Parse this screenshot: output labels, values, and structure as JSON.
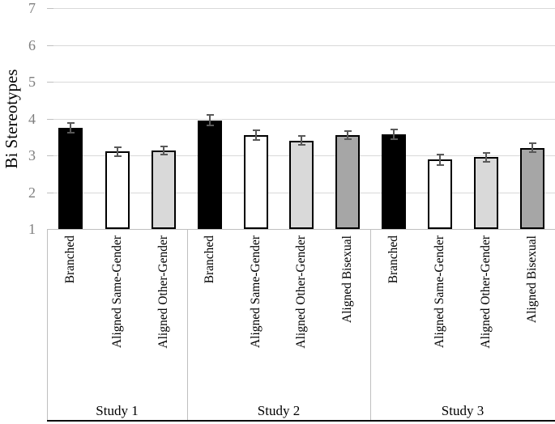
{
  "chart_data": {
    "type": "bar",
    "title": "",
    "xlabel": "",
    "ylabel": "Bi Stereotypes",
    "ylim": [
      1,
      7
    ],
    "yticks": [
      "1",
      "2",
      "3",
      "4",
      "5",
      "6",
      "7"
    ],
    "grid": "horizontal gridlines on, light gray",
    "legend_position": "none (categories labeled under each bar)",
    "conditions": [
      {
        "name": "Branched",
        "fill": "#000000"
      },
      {
        "name": "Aligned Same-Gender",
        "fill": "#ffffff"
      },
      {
        "name": "Aligned Other-Gender",
        "fill": "#d9d9d9"
      },
      {
        "name": "Aligned Bisexual",
        "fill": "#a6a6a6"
      }
    ],
    "groups": [
      {
        "label": "Study 1",
        "bars": [
          {
            "category": "Branched",
            "value": 3.75,
            "error": 0.13
          },
          {
            "category": "Aligned Same-Gender",
            "value": 3.1,
            "error": 0.13
          },
          {
            "category": "Aligned Other-Gender",
            "value": 3.13,
            "error": 0.11
          }
        ]
      },
      {
        "label": "Study 2",
        "bars": [
          {
            "category": "Branched",
            "value": 3.95,
            "error": 0.14
          },
          {
            "category": "Aligned Same-Gender",
            "value": 3.55,
            "error": 0.13
          },
          {
            "category": "Aligned Other-Gender",
            "value": 3.4,
            "error": 0.12
          },
          {
            "category": "Aligned Bisexual",
            "value": 3.55,
            "error": 0.12
          }
        ]
      },
      {
        "label": "Study 3",
        "bars": [
          {
            "category": "Branched",
            "value": 3.58,
            "error": 0.13
          },
          {
            "category": "Aligned Same-Gender",
            "value": 2.88,
            "error": 0.14
          },
          {
            "category": "Aligned Other-Gender",
            "value": 2.95,
            "error": 0.12
          },
          {
            "category": "Aligned Bisexual",
            "value": 3.2,
            "error": 0.12
          }
        ]
      }
    ],
    "colors": {
      "gridline": "#d9d9d9",
      "axis_line": "#bfbfbf",
      "tick_label": "#7f7f7f",
      "error_bar": "#595959",
      "bar_border": "#000000",
      "bottom_border": "#0d0d0d",
      "text": "#000000"
    }
  }
}
